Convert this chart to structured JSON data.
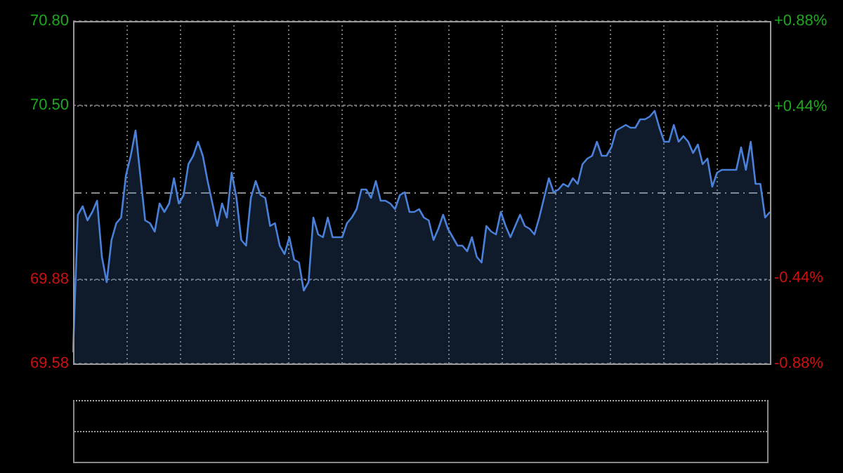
{
  "chart_data": {
    "type": "area",
    "categories": [
      null,
      null,
      null,
      null,
      null,
      null,
      null,
      null,
      null,
      null,
      null,
      null,
      null,
      null,
      null,
      null,
      null,
      null,
      null,
      null,
      null,
      null,
      null,
      null,
      null,
      null,
      null,
      null,
      null,
      null,
      null,
      null,
      null,
      null,
      null,
      null,
      null,
      null,
      null,
      null,
      null,
      null,
      null,
      null,
      null,
      null,
      null,
      null,
      null,
      null,
      null,
      null,
      null,
      null,
      null,
      null,
      null,
      null,
      null,
      null,
      null,
      null,
      null,
      null,
      null,
      null,
      null,
      null,
      null,
      null,
      null,
      null,
      null,
      null,
      null,
      null,
      null,
      null,
      null,
      null,
      null,
      null,
      null,
      null,
      null,
      null,
      null,
      null,
      null,
      null,
      null,
      null,
      null,
      null,
      null,
      null,
      null,
      null,
      null,
      null,
      null,
      null,
      null,
      null,
      null,
      null,
      null,
      null,
      null,
      null,
      null,
      null,
      null,
      null,
      null,
      null,
      null,
      null,
      null,
      null,
      null,
      null,
      null,
      null,
      null,
      null,
      null,
      null,
      null,
      null,
      null,
      null,
      null,
      null,
      null,
      null,
      null,
      null,
      null,
      null,
      null,
      null,
      null,
      null,
      null,
      null
    ],
    "series": [
      {
        "color": "#4a80d8",
        "values": [
          69.62,
          70.11,
          70.14,
          70.09,
          70.12,
          70.16,
          69.96,
          69.87,
          70.02,
          70.08,
          70.1,
          70.25,
          70.32,
          70.41,
          70.25,
          70.09,
          70.08,
          70.05,
          70.15,
          70.12,
          70.15,
          70.24,
          70.15,
          70.18,
          70.29,
          70.32,
          70.37,
          70.32,
          70.23,
          70.15,
          70.07,
          70.15,
          70.1,
          70.26,
          70.17,
          70.02,
          70.0,
          70.17,
          70.23,
          70.18,
          70.17,
          70.07,
          70.08,
          70.0,
          69.97,
          70.03,
          69.95,
          69.94,
          69.84,
          69.87,
          70.1,
          70.04,
          70.03,
          70.1,
          70.03,
          70.03,
          70.03,
          70.08,
          70.1,
          70.13,
          70.2,
          70.2,
          70.17,
          70.23,
          70.16,
          70.16,
          70.15,
          70.13,
          70.18,
          70.19,
          70.12,
          70.12,
          70.13,
          70.1,
          70.09,
          70.02,
          70.06,
          70.11,
          70.06,
          70.03,
          70.0,
          70.0,
          69.98,
          70.03,
          69.96,
          69.94,
          70.07,
          70.05,
          70.04,
          70.12,
          70.07,
          70.03,
          70.07,
          70.11,
          70.07,
          70.06,
          70.04,
          70.1,
          70.17,
          70.24,
          70.19,
          70.2,
          70.22,
          70.21,
          70.24,
          70.22,
          70.29,
          70.31,
          70.32,
          70.37,
          70.32,
          70.32,
          70.35,
          70.41,
          70.42,
          70.43,
          70.42,
          70.42,
          70.45,
          70.45,
          70.46,
          70.48,
          70.42,
          70.37,
          70.37,
          70.43,
          70.37,
          70.39,
          70.37,
          70.33,
          70.36,
          70.29,
          70.31,
          70.21,
          70.26,
          70.27,
          70.27,
          70.27,
          70.27,
          70.35,
          70.27,
          70.37,
          70.22,
          70.22,
          70.1,
          70.12
        ]
      }
    ],
    "ylim": [
      69.58,
      70.8
    ],
    "yticks": [
      {
        "value": 70.8,
        "label": "70.80"
      },
      {
        "value": 70.5,
        "label": "70.50"
      },
      69.88,
      69.58
    ],
    "y2lim": [
      -0.88,
      0.88
    ],
    "y2ticks": [
      {
        "value": 0.88,
        "label": "+0.88%"
      },
      {
        "value": 0.44,
        "label": "+0.44%"
      },
      {
        "value": -0.44,
        "label": "-0.44%"
      },
      {
        "value": -0.88,
        "label": "-0.88%"
      }
    ],
    "ref_lines": [
      {
        "axis": "y",
        "value": 70.19,
        "color": "#8a8a8a",
        "line_style": "dashdot"
      }
    ],
    "grid": true,
    "legend": false,
    "tick_labels": "y",
    "marker": "none",
    "line_style": "solid"
  }
}
